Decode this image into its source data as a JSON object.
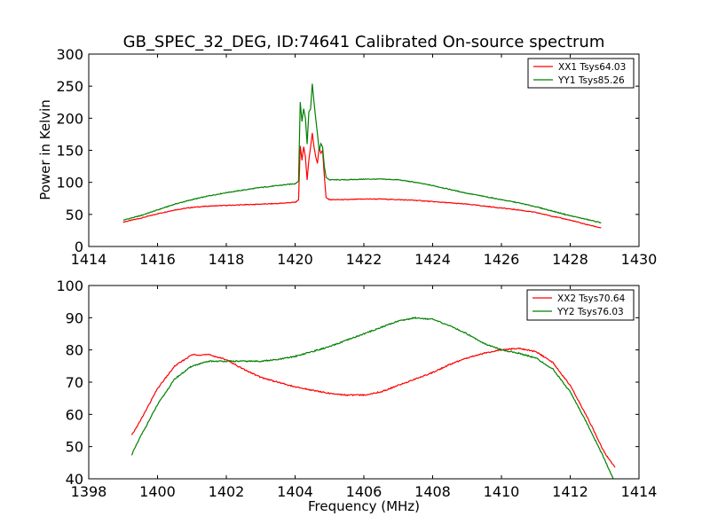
{
  "title": "GB_SPEC_32_DEG, ID:74641 Calibrated On-source spectrum",
  "chart_data": [
    {
      "type": "line",
      "xlabel": "",
      "ylabel": "Power in Kelvin",
      "xlim": [
        1414,
        1430
      ],
      "ylim": [
        0,
        300
      ],
      "xticks": [
        1414,
        1416,
        1418,
        1420,
        1422,
        1424,
        1426,
        1428,
        1430
      ],
      "yticks": [
        0,
        50,
        100,
        150,
        200,
        250,
        300
      ],
      "grid": false,
      "legend_position": "top-right",
      "series": [
        {
          "name": "XX1 Tsys64.03",
          "color": "#ff0000",
          "points": [
            [
              1415.0,
              38
            ],
            [
              1415.5,
              44
            ],
            [
              1416.0,
              51
            ],
            [
              1416.5,
              57
            ],
            [
              1417.0,
              61
            ],
            [
              1417.5,
              63
            ],
            [
              1418.0,
              64
            ],
            [
              1418.5,
              65
            ],
            [
              1419.0,
              66
            ],
            [
              1419.5,
              67
            ],
            [
              1420.0,
              69
            ],
            [
              1420.1,
              72
            ],
            [
              1420.15,
              157
            ],
            [
              1420.2,
              135
            ],
            [
              1420.25,
              155
            ],
            [
              1420.3,
              140
            ],
            [
              1420.35,
              104
            ],
            [
              1420.4,
              135
            ],
            [
              1420.45,
              155
            ],
            [
              1420.5,
              177
            ],
            [
              1420.55,
              155
            ],
            [
              1420.6,
              140
            ],
            [
              1420.65,
              130
            ],
            [
              1420.7,
              155
            ],
            [
              1420.75,
              145
            ],
            [
              1420.8,
              150
            ],
            [
              1420.85,
              110
            ],
            [
              1420.9,
              76
            ],
            [
              1421.0,
              73
            ],
            [
              1421.5,
              73
            ],
            [
              1422.0,
              74
            ],
            [
              1422.5,
              74
            ],
            [
              1423.0,
              73
            ],
            [
              1423.5,
              72
            ],
            [
              1424.0,
              70
            ],
            [
              1424.5,
              68
            ],
            [
              1425.0,
              66
            ],
            [
              1425.5,
              63
            ],
            [
              1426.0,
              60
            ],
            [
              1426.5,
              57
            ],
            [
              1427.0,
              53
            ],
            [
              1427.5,
              47
            ],
            [
              1428.0,
              41
            ],
            [
              1428.5,
              34
            ],
            [
              1428.9,
              29
            ]
          ]
        },
        {
          "name": "YY1 Tsys85.26",
          "color": "#008000",
          "points": [
            [
              1415.0,
              41
            ],
            [
              1415.5,
              48
            ],
            [
              1416.0,
              57
            ],
            [
              1416.5,
              66
            ],
            [
              1417.0,
              73
            ],
            [
              1417.5,
              79
            ],
            [
              1418.0,
              84
            ],
            [
              1418.5,
              88
            ],
            [
              1419.0,
              92
            ],
            [
              1419.5,
              95
            ],
            [
              1420.0,
              98
            ],
            [
              1420.1,
              102
            ],
            [
              1420.15,
              225
            ],
            [
              1420.2,
              195
            ],
            [
              1420.25,
              215
            ],
            [
              1420.3,
              200
            ],
            [
              1420.35,
              160
            ],
            [
              1420.4,
              210
            ],
            [
              1420.45,
              215
            ],
            [
              1420.5,
              254
            ],
            [
              1420.55,
              225
            ],
            [
              1420.6,
              200
            ],
            [
              1420.65,
              175
            ],
            [
              1420.7,
              150
            ],
            [
              1420.75,
              160
            ],
            [
              1420.8,
              155
            ],
            [
              1420.85,
              125
            ],
            [
              1420.9,
              108
            ],
            [
              1421.0,
              104
            ],
            [
              1421.5,
              104
            ],
            [
              1422.0,
              105
            ],
            [
              1422.5,
              105
            ],
            [
              1423.0,
              104
            ],
            [
              1423.5,
              100
            ],
            [
              1424.0,
              95
            ],
            [
              1424.5,
              89
            ],
            [
              1425.0,
              83
            ],
            [
              1425.5,
              78
            ],
            [
              1426.0,
              73
            ],
            [
              1426.5,
              68
            ],
            [
              1427.0,
              62
            ],
            [
              1427.5,
              55
            ],
            [
              1428.0,
              48
            ],
            [
              1428.5,
              42
            ],
            [
              1428.9,
              37
            ]
          ]
        }
      ]
    },
    {
      "type": "line",
      "xlabel": "Frequency (MHz)",
      "ylabel": "",
      "xlim": [
        1398,
        1414
      ],
      "ylim": [
        40,
        100
      ],
      "xticks": [
        1398,
        1400,
        1402,
        1404,
        1406,
        1408,
        1410,
        1412,
        1414
      ],
      "yticks": [
        40,
        50,
        60,
        70,
        80,
        90,
        100
      ],
      "grid": false,
      "legend_position": "top-right",
      "series": [
        {
          "name": "XX2 Tsys70.64",
          "color": "#ff0000",
          "points": [
            [
              1399.25,
              53.5
            ],
            [
              1399.5,
              58
            ],
            [
              1400.0,
              68
            ],
            [
              1400.5,
              75
            ],
            [
              1401.0,
              78.5
            ],
            [
              1401.5,
              78.5
            ],
            [
              1402.0,
              77
            ],
            [
              1402.5,
              74
            ],
            [
              1403.0,
              71.5
            ],
            [
              1403.5,
              70
            ],
            [
              1404.0,
              68.5
            ],
            [
              1404.5,
              67.5
            ],
            [
              1405.0,
              66.5
            ],
            [
              1405.5,
              66
            ],
            [
              1406.0,
              66
            ],
            [
              1406.5,
              67
            ],
            [
              1407.0,
              69
            ],
            [
              1407.5,
              71
            ],
            [
              1408.0,
              73
            ],
            [
              1408.5,
              75.5
            ],
            [
              1409.0,
              77.5
            ],
            [
              1409.5,
              79
            ],
            [
              1410.0,
              80
            ],
            [
              1410.5,
              80.5
            ],
            [
              1411.0,
              79.5
            ],
            [
              1411.5,
              76
            ],
            [
              1412.0,
              69
            ],
            [
              1412.5,
              59
            ],
            [
              1413.0,
              48
            ],
            [
              1413.3,
              43.5
            ]
          ]
        },
        {
          "name": "YY2 Tsys76.03",
          "color": "#008000",
          "points": [
            [
              1399.25,
              47.5
            ],
            [
              1399.5,
              53
            ],
            [
              1400.0,
              63
            ],
            [
              1400.5,
              71
            ],
            [
              1401.0,
              75
            ],
            [
              1401.5,
              76.5
            ],
            [
              1402.0,
              76.5
            ],
            [
              1402.5,
              76.5
            ],
            [
              1403.0,
              76.5
            ],
            [
              1403.5,
              77
            ],
            [
              1404.0,
              78
            ],
            [
              1404.5,
              79.5
            ],
            [
              1405.0,
              81
            ],
            [
              1405.5,
              83
            ],
            [
              1406.0,
              85
            ],
            [
              1406.5,
              87
            ],
            [
              1407.0,
              89
            ],
            [
              1407.5,
              90
            ],
            [
              1408.0,
              89.5
            ],
            [
              1408.5,
              87.5
            ],
            [
              1409.0,
              85
            ],
            [
              1409.5,
              82
            ],
            [
              1410.0,
              80
            ],
            [
              1410.5,
              79
            ],
            [
              1411.0,
              77.5
            ],
            [
              1411.5,
              74
            ],
            [
              1412.0,
              67
            ],
            [
              1412.5,
              57
            ],
            [
              1413.0,
              46
            ],
            [
              1413.25,
              40
            ]
          ]
        }
      ]
    }
  ]
}
